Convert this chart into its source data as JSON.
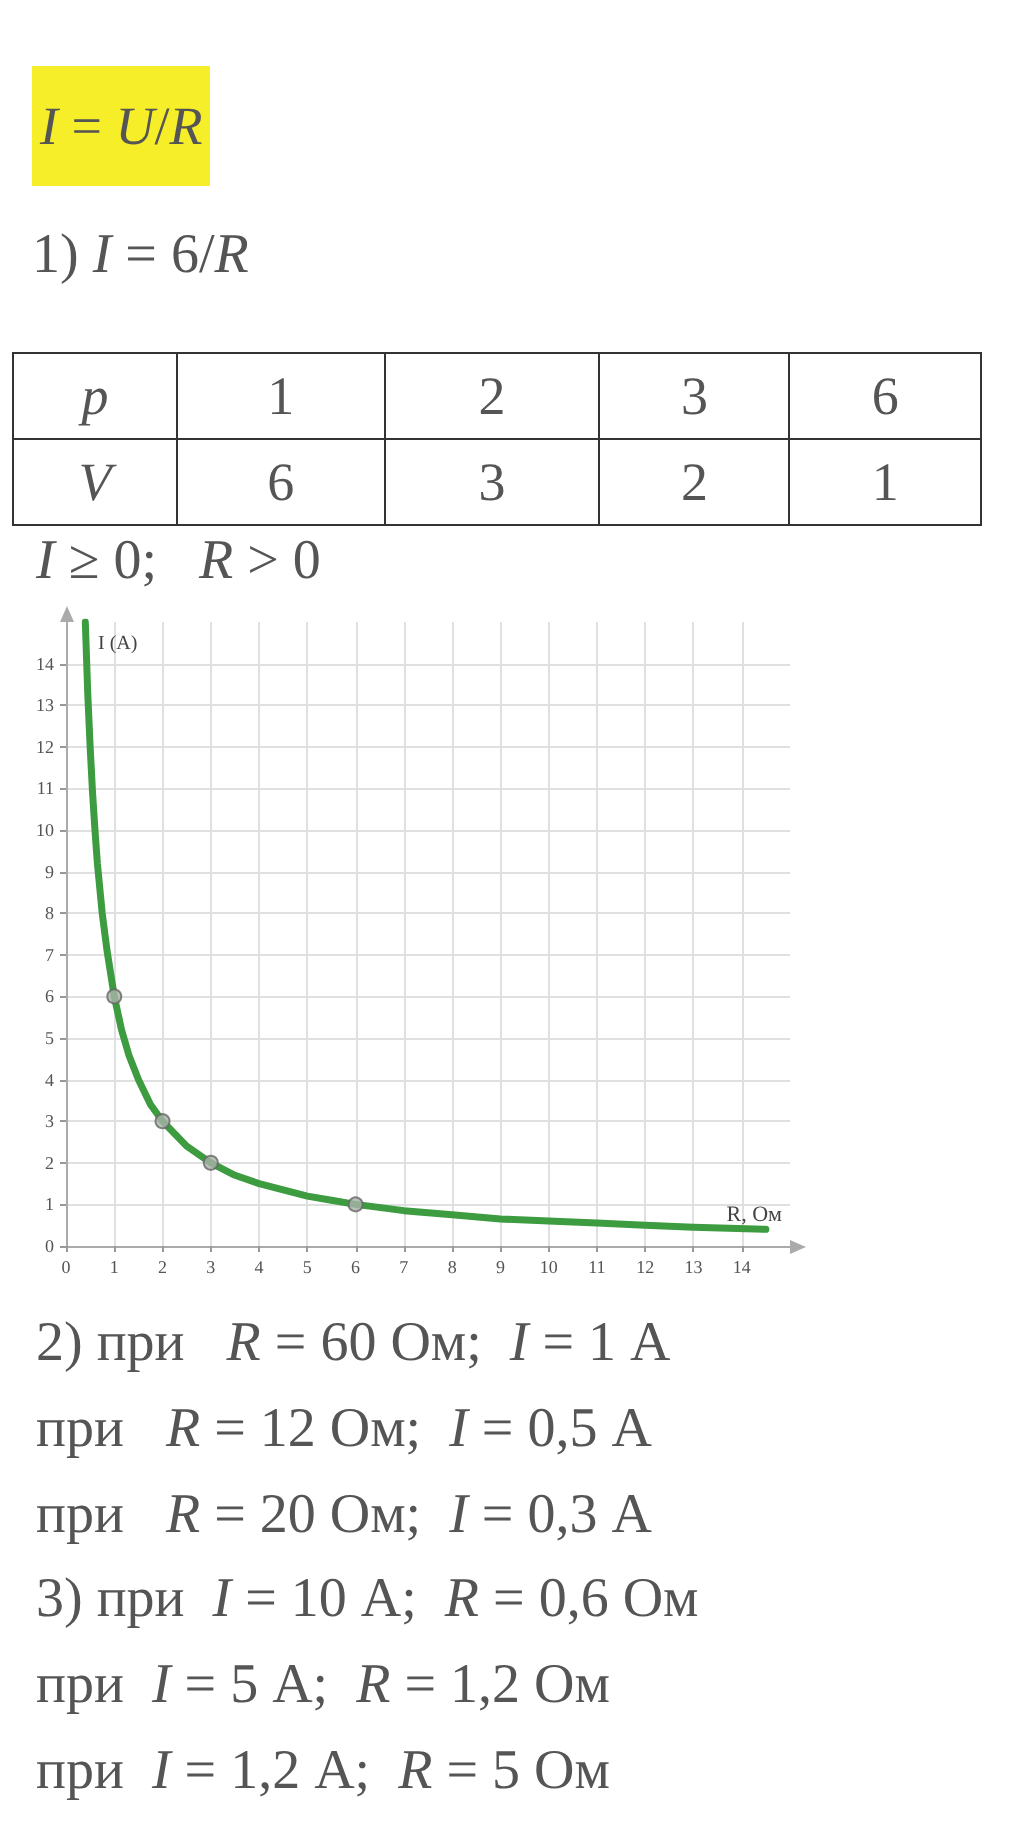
{
  "chart_data": {
    "type": "line",
    "title": "I = U/R",
    "subtitle": "1) I = 6/R",
    "xlabel": "R, Ом",
    "ylabel": "I (A)",
    "xlim": [
      0,
      15
    ],
    "xticks": [
      0,
      1,
      2,
      3,
      4,
      5,
      6,
      7,
      8,
      9,
      10,
      11,
      12,
      13,
      14
    ],
    "ylim": [
      0,
      15
    ],
    "yticks": [
      0,
      1,
      2,
      3,
      4,
      5,
      6,
      7,
      8,
      9,
      10,
      11,
      12,
      13,
      14
    ],
    "grid": true,
    "series": [
      {
        "color": "#3d9b40",
        "marker": "none",
        "x": [
          0.4,
          0.45,
          0.5,
          0.55,
          0.6,
          0.65,
          0.7,
          0.75,
          0.85,
          1,
          1.15,
          1.3,
          1.5,
          1.75,
          2,
          2.5,
          3,
          3.5,
          4,
          4.5,
          5,
          5.5,
          6,
          7,
          8,
          9,
          10,
          11,
          12,
          13,
          14.5
        ],
        "values": [
          15,
          13.3,
          12,
          10.9,
          10,
          9.2,
          8.6,
          8,
          7.1,
          6,
          5.2,
          4.6,
          4,
          3.4,
          3,
          2.4,
          2,
          1.7,
          1.5,
          1.35,
          1.2,
          1.1,
          1,
          0.85,
          0.75,
          0.65,
          0.6,
          0.55,
          0.5,
          0.45,
          0.4
        ]
      },
      {
        "type": "scatter",
        "color": "#a9b3a9",
        "marker": "circle",
        "x": [
          1,
          2,
          3,
          6
        ],
        "values": [
          6,
          3,
          2,
          1
        ]
      }
    ],
    "annotations": [
      "p",
      "1",
      "2",
      "3",
      "6",
      "V",
      "6",
      "3",
      "2",
      "1",
      "I ≥ 0;   R > 0",
      "2) при   R = 60 Ом;  I = 1 А",
      "при   R = 12 Ом;  I = 0,5 А",
      "при   R = 20 Ом;  I = 0,3 А",
      "3) при  I = 10 А;  R = 0,6 Ом",
      "при  I = 5 А;  R = 1,2 Ом",
      "при  I = 1,2 А;  R = 5 Ом"
    ]
  }
}
